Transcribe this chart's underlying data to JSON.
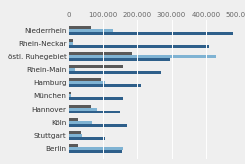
{
  "categories": [
    "Niederrhein",
    "Rhein-Neckar",
    "östl. Ruhegebiet",
    "Rhein-Main",
    "Hamburg",
    "München",
    "Hannover",
    "Köln",
    "Stuttgart",
    "Berlin"
  ],
  "series": {
    "dark_blue": [
      480000,
      410000,
      295000,
      270000,
      210000,
      160000,
      150000,
      170000,
      105000,
      155000
    ],
    "light_blue": [
      130000,
      12000,
      430000,
      18000,
      105000,
      8000,
      82000,
      68000,
      38000,
      158000
    ],
    "dark_gray": [
      65000,
      12000,
      185000,
      158000,
      95000,
      8000,
      65000,
      28000,
      35000,
      28000
    ]
  },
  "colors": {
    "dark_blue": "#2e5f8a",
    "light_blue": "#7fb3d3",
    "dark_gray": "#595959"
  },
  "xlim": [
    0,
    500000
  ],
  "xticks": [
    0,
    100000,
    200000,
    300000,
    400000,
    500000
  ],
  "xtick_labels": [
    "0",
    "100.000",
    "200.000",
    "300.000",
    "400.000",
    "500.000"
  ],
  "bar_height": 0.22,
  "font_size": 5.0,
  "label_font_size": 5.2,
  "background_color": "#efefef"
}
